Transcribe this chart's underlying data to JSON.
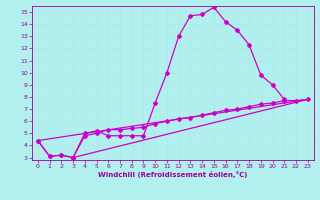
{
  "xlabel": "Windchill (Refroidissement éolien,°C)",
  "bg_color": "#b2f0f0",
  "grid_color": "#b0e8e8",
  "line_color": "#cc00cc",
  "tick_color": "#990099",
  "xlim": [
    -0.5,
    23.5
  ],
  "ylim": [
    2.8,
    15.5
  ],
  "xticks": [
    0,
    1,
    2,
    3,
    4,
    5,
    6,
    7,
    8,
    9,
    10,
    11,
    12,
    13,
    14,
    15,
    16,
    17,
    18,
    19,
    20,
    21,
    22,
    23
  ],
  "yticks": [
    3,
    4,
    5,
    6,
    7,
    8,
    9,
    10,
    11,
    12,
    13,
    14,
    15
  ],
  "line1_x": [
    0,
    1,
    2,
    3,
    4,
    5,
    6,
    7,
    8,
    9,
    10,
    11,
    12,
    13,
    14,
    15,
    16,
    17,
    18,
    19,
    20,
    21
  ],
  "line1_y": [
    4.4,
    3.1,
    3.2,
    3.0,
    5.0,
    5.2,
    4.8,
    4.8,
    4.8,
    4.8,
    7.5,
    10.0,
    13.0,
    14.7,
    14.8,
    15.4,
    14.2,
    13.5,
    12.3,
    9.8,
    9.0,
    7.8
  ],
  "line2_x": [
    0,
    1,
    2,
    3,
    4,
    5,
    6,
    7,
    8,
    9,
    10,
    11,
    12,
    13,
    14,
    15,
    16,
    17,
    18,
    19,
    20,
    21,
    22,
    23
  ],
  "line2_y": [
    4.4,
    3.1,
    3.2,
    3.0,
    4.8,
    5.0,
    5.3,
    5.3,
    5.4,
    5.5,
    5.8,
    6.0,
    6.2,
    6.3,
    6.5,
    6.7,
    6.9,
    7.0,
    7.2,
    7.4,
    7.5,
    7.7,
    7.7,
    7.8
  ],
  "line3_x": [
    0,
    23
  ],
  "line3_y": [
    4.4,
    7.8
  ],
  "line4_x": [
    3,
    23
  ],
  "line4_y": [
    3.0,
    7.8
  ],
  "marker": "D",
  "markersize": 2.0,
  "linewidth": 0.9
}
